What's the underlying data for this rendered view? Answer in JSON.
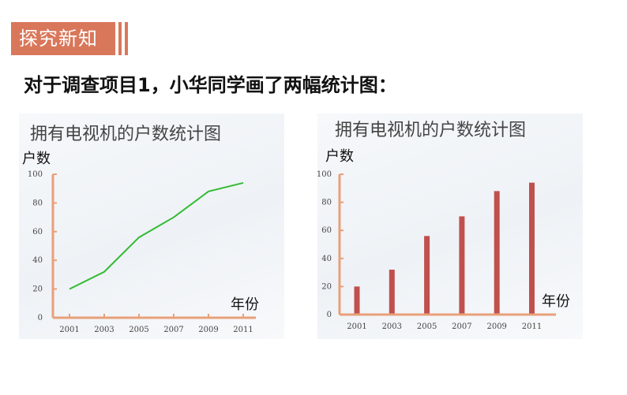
{
  "header": {
    "title": "探究新知"
  },
  "intro": {
    "text": "对于调查项目1，小华同学画了两幅统计图："
  },
  "colors": {
    "accent": "#d9775a",
    "axis": "#e8a07a",
    "line": "#33bb33",
    "bar": "#c0504d"
  },
  "chart_data": [
    {
      "type": "line",
      "title": "拥有电视机的户数统计图",
      "ylabel": "户数",
      "xlabel": "年份",
      "categories": [
        "2001",
        "2003",
        "2005",
        "2007",
        "2009",
        "2011"
      ],
      "values": [
        20,
        32,
        56,
        70,
        88,
        94
      ],
      "ylim": [
        0,
        100
      ],
      "yticks": [
        "0",
        "20",
        "40",
        "60",
        "80",
        "100"
      ],
      "grid": false
    },
    {
      "type": "bar",
      "title": "拥有电视机的户数统计图",
      "ylabel": "户数",
      "xlabel": "年份",
      "categories": [
        "2001",
        "2003",
        "2005",
        "2007",
        "2009",
        "2011"
      ],
      "values": [
        20,
        32,
        56,
        70,
        88,
        94
      ],
      "ylim": [
        0,
        100
      ],
      "yticks": [
        "0",
        "20",
        "40",
        "60",
        "80",
        "100"
      ],
      "grid": false
    }
  ]
}
